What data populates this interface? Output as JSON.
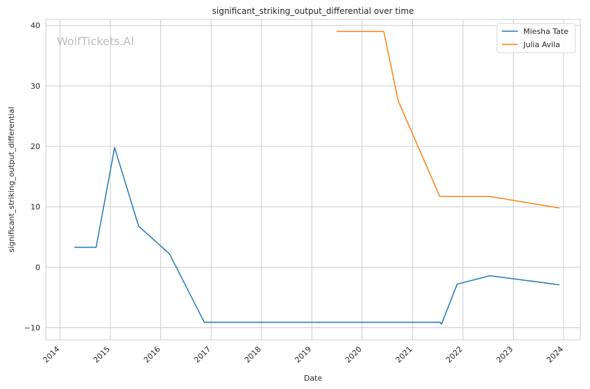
{
  "chart_data": {
    "type": "line",
    "title": "significant_striking_output_differential over time",
    "xlabel": "Date",
    "ylabel": "significant_striking_output_differential",
    "watermark": "WolfTickets.AI",
    "x_ticks": [
      "2014",
      "2015",
      "2016",
      "2017",
      "2018",
      "2019",
      "2020",
      "2021",
      "2022",
      "2023",
      "2024"
    ],
    "y_ticks": [
      -10,
      0,
      10,
      20,
      30,
      40
    ],
    "xlim": [
      "2013-09-20",
      "2024-05-01"
    ],
    "ylim": [
      -12,
      41
    ],
    "grid": true,
    "legend_position": "top-right",
    "colors": {
      "Miesha Tate": "#1f77b4",
      "Julia Avila": "#ff7f0e"
    },
    "series": [
      {
        "name": "Miesha Tate",
        "points": [
          {
            "x": "2014-04-15",
            "y": 3.3
          },
          {
            "x": "2014-09-20",
            "y": 3.3
          },
          {
            "x": "2015-02-01",
            "y": 19.8
          },
          {
            "x": "2015-07-25",
            "y": 6.8
          },
          {
            "x": "2016-03-05",
            "y": 2.2
          },
          {
            "x": "2016-11-12",
            "y": -9.1
          },
          {
            "x": "2021-07-17",
            "y": -9.1
          },
          {
            "x": "2021-07-30",
            "y": -9.4
          },
          {
            "x": "2021-11-20",
            "y": -2.8
          },
          {
            "x": "2022-07-16",
            "y": -1.4
          },
          {
            "x": "2023-12-02",
            "y": -2.9
          }
        ]
      },
      {
        "name": "Julia Avila",
        "points": [
          {
            "x": "2019-06-29",
            "y": 39.0
          },
          {
            "x": "2020-06-06",
            "y": 39.0
          },
          {
            "x": "2020-09-19",
            "y": 27.5
          },
          {
            "x": "2021-07-17",
            "y": 11.7
          },
          {
            "x": "2022-07-16",
            "y": 11.7
          },
          {
            "x": "2023-12-02",
            "y": 9.8
          }
        ]
      }
    ]
  }
}
